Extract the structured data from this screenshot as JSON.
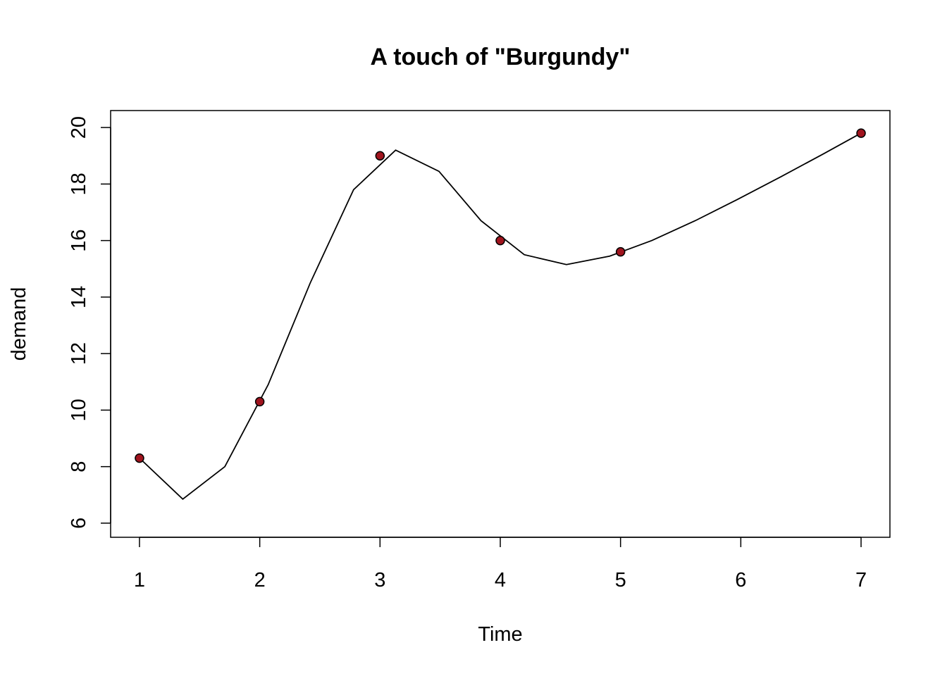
{
  "chart_data": {
    "type": "scatter",
    "title": "A touch of \"Burgundy\"",
    "xlabel": "Time",
    "ylabel": "demand",
    "xlim": [
      0.76,
      7.24
    ],
    "ylim": [
      5.5,
      20.6
    ],
    "x_ticks": [
      1,
      2,
      3,
      4,
      5,
      6,
      7
    ],
    "y_ticks": [
      6,
      8,
      10,
      12,
      14,
      16,
      18,
      20
    ],
    "grid": false,
    "legend": "none",
    "point_color": "#a0141e",
    "point_outline": "#000000",
    "line_color": "#000000",
    "points": [
      {
        "x": 1,
        "y": 8.3
      },
      {
        "x": 2,
        "y": 10.3
      },
      {
        "x": 3,
        "y": 19.0
      },
      {
        "x": 4,
        "y": 16.0
      },
      {
        "x": 5,
        "y": 15.6
      },
      {
        "x": 7,
        "y": 19.8
      }
    ],
    "smooth_line": [
      {
        "x": 1.0,
        "y": 8.3
      },
      {
        "x": 1.36,
        "y": 6.85
      },
      {
        "x": 1.71,
        "y": 8.0
      },
      {
        "x": 2.07,
        "y": 10.9
      },
      {
        "x": 2.42,
        "y": 14.5
      },
      {
        "x": 2.78,
        "y": 17.8
      },
      {
        "x": 3.13,
        "y": 19.2
      },
      {
        "x": 3.49,
        "y": 18.45
      },
      {
        "x": 3.84,
        "y": 16.7
      },
      {
        "x": 4.2,
        "y": 15.5
      },
      {
        "x": 4.55,
        "y": 15.15
      },
      {
        "x": 4.91,
        "y": 15.45
      },
      {
        "x": 5.26,
        "y": 16.0
      },
      {
        "x": 5.62,
        "y": 16.7
      },
      {
        "x": 5.97,
        "y": 17.45
      },
      {
        "x": 6.33,
        "y": 18.25
      },
      {
        "x": 6.68,
        "y": 19.05
      },
      {
        "x": 7.0,
        "y": 19.8
      }
    ]
  }
}
